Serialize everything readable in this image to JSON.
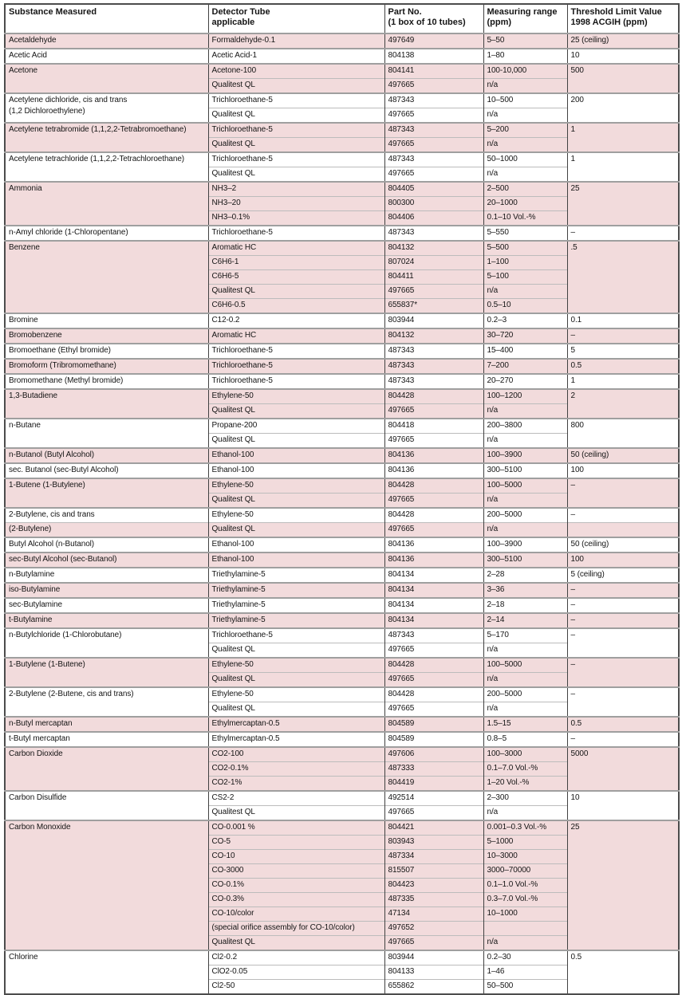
{
  "colors": {
    "row_pink": "#f2dbdc",
    "row_white": "#ffffff",
    "grid_dark": "#414141",
    "group_separator": "#9f9f9f",
    "subrow_separator": "#bcbcbc"
  },
  "header": {
    "columns": [
      "Substance Measured",
      "Detector Tube\napplicable",
      "Part No.\n(1 box of 10 tubes)",
      "Measuring range\n(ppm)",
      "Threshold Limit Value\n1998 ACGIH (ppm)"
    ]
  },
  "table": {
    "groups": [
      {
        "substance": "Acetaldehyde",
        "shade": "pink",
        "tlv": "25 (ceiling)",
        "rows": [
          {
            "tube": "Formaldehyde-0.1",
            "part": "497649",
            "range": "5–50"
          }
        ]
      },
      {
        "substance": "Acetic Acid",
        "shade": "white",
        "tlv": "10",
        "rows": [
          {
            "tube": "Acetic Acid-1",
            "part": "804138",
            "range": "1–80"
          }
        ]
      },
      {
        "substance": "Acetone",
        "shade": "pink",
        "tlv": "500",
        "rows": [
          {
            "tube": "Acetone-100",
            "part": "804141",
            "range": "100-10,000"
          },
          {
            "tube": "Qualitest QL",
            "part": "497665",
            "range": "n/a"
          }
        ]
      },
      {
        "substance": "Acetylene dichloride, cis and trans\n(1,2 Dichloroethylene)",
        "shade": "white",
        "tlv": "200",
        "rows": [
          {
            "tube": "Trichloroethane-5",
            "part": "487343",
            "range": "10–500"
          },
          {
            "tube": "Qualitest QL",
            "part": "497665",
            "range": "n/a"
          }
        ]
      },
      {
        "substance": "Acetylene tetrabromide (1,1,2,2-Tetrabromoethane)",
        "shade": "pink",
        "tlv": "1",
        "rows": [
          {
            "tube": "Trichloroethane-5",
            "part": "487343",
            "range": "5–200"
          },
          {
            "tube": "Qualitest QL",
            "part": "497665",
            "range": "n/a"
          }
        ]
      },
      {
        "substance": "Acetylene tetrachloride (1,1,2,2-Tetrachloroethane)",
        "shade": "white",
        "tlv": "1",
        "rows": [
          {
            "tube": "Trichloroethane-5",
            "part": "487343",
            "range": "50–1000"
          },
          {
            "tube": "Qualitest QL",
            "part": "497665",
            "range": "n/a"
          }
        ]
      },
      {
        "substance": "Ammonia",
        "shade": "pink",
        "tlv": "25",
        "rows": [
          {
            "tube": "NH3–2",
            "part": "804405",
            "range": "2–500"
          },
          {
            "tube": "NH3–20",
            "part": "800300",
            "range": "20–1000"
          },
          {
            "tube": "NH3–0.1%",
            "part": "804406",
            "range": "0.1–10 Vol.-%"
          }
        ]
      },
      {
        "substance": "n-Amyl chloride (1-Chloropentane)",
        "shade": "white",
        "tlv": "–",
        "rows": [
          {
            "tube": "Trichloroethane-5",
            "part": "487343",
            "range": "5–550"
          }
        ]
      },
      {
        "substance": "Benzene",
        "shade": "pink",
        "tlv": ".5",
        "rows": [
          {
            "tube": "Aromatic HC",
            "part": "804132",
            "range": "5–500"
          },
          {
            "tube": "C6H6-1",
            "part": "807024",
            "range": "1–100"
          },
          {
            "tube": "C6H6-5",
            "part": "804411",
            "range": "5–100"
          },
          {
            "tube": "Qualitest QL",
            "part": "497665",
            "range": "n/a"
          },
          {
            "tube": "C6H6-0.5",
            "part": "655837*",
            "range": "0.5–10"
          }
        ]
      },
      {
        "substance": "Bromine",
        "shade": "white",
        "tlv": "0.1",
        "rows": [
          {
            "tube": "C12-0.2",
            "part": "803944",
            "range": "0.2–3"
          }
        ]
      },
      {
        "substance": "Bromobenzene",
        "shade": "pink",
        "tlv": "–",
        "rows": [
          {
            "tube": "Aromatic HC",
            "part": "804132",
            "range": "30–720"
          }
        ]
      },
      {
        "substance": "Bromoethane (Ethyl bromide)",
        "shade": "white",
        "tlv": "5",
        "rows": [
          {
            "tube": "Trichloroethane-5",
            "part": "487343",
            "range": "15–400"
          }
        ]
      },
      {
        "substance": "Bromoform (Tribromomethane)",
        "shade": "pink",
        "tlv": "0.5",
        "rows": [
          {
            "tube": "Trichloroethane-5",
            "part": "487343",
            "range": "7–200"
          }
        ]
      },
      {
        "substance": "Bromomethane (Methyl bromide)",
        "shade": "white",
        "tlv": "1",
        "rows": [
          {
            "tube": "Trichloroethane-5",
            "part": "487343",
            "range": "20–270"
          }
        ]
      },
      {
        "substance": "1,3-Butadiene",
        "shade": "pink",
        "tlv": "2",
        "rows": [
          {
            "tube": "Ethylene-50",
            "part": "804428",
            "range": "100–1200"
          },
          {
            "tube": "Qualitest QL",
            "part": "497665",
            "range": "n/a"
          }
        ]
      },
      {
        "substance": "n-Butane",
        "shade": "white",
        "tlv": "800",
        "rows": [
          {
            "tube": "Propane-200",
            "part": "804418",
            "range": "200–3800"
          },
          {
            "tube": "Qualitest QL",
            "part": "497665",
            "range": "n/a"
          }
        ]
      },
      {
        "substance": "n-Butanol (Butyl Alcohol)",
        "shade": "pink",
        "tlv": "50 (ceiling)",
        "rows": [
          {
            "tube": "Ethanol-100",
            "part": "804136",
            "range": "100–3900"
          }
        ]
      },
      {
        "substance": "sec. Butanol (sec-Butyl Alcohol)",
        "shade": "white",
        "tlv": "100",
        "rows": [
          {
            "tube": "Ethanol-100",
            "part": "804136",
            "range": "300–5100"
          }
        ]
      },
      {
        "substance": "1-Butene (1-Butylene)",
        "shade": "pink",
        "tlv": "–",
        "rows": [
          {
            "tube": "Ethylene-50",
            "part": "804428",
            "range": "100–5000"
          },
          {
            "tube": "Qualitest QL",
            "part": "497665",
            "range": "n/a"
          }
        ]
      },
      {
        "substance": "2-Butylene, cis and trans",
        "shade": "white",
        "tlv": "–",
        "rows": [
          {
            "tube": "Ethylene-50",
            "part": "804428",
            "range": "200–5000"
          }
        ]
      },
      {
        "substance": "(2-Butylene)",
        "shade": "pink",
        "tlv": "",
        "light_start": true,
        "rows": [
          {
            "tube": "Qualitest QL",
            "part": "497665",
            "range": "n/a"
          }
        ]
      },
      {
        "substance": "Butyl Alcohol (n-Butanol)",
        "shade": "white",
        "tlv": "50 (ceiling)",
        "rows": [
          {
            "tube": "Ethanol-100",
            "part": "804136",
            "range": "100–3900"
          }
        ]
      },
      {
        "substance": "sec-Butyl Alcohol (sec-Butanol)",
        "shade": "pink",
        "tlv": "100",
        "rows": [
          {
            "tube": "Ethanol-100",
            "part": "804136",
            "range": "300–5100"
          }
        ]
      },
      {
        "substance": "n-Butylamine",
        "shade": "white",
        "tlv": "5 (ceiling)",
        "rows": [
          {
            "tube": "Triethylamine-5",
            "part": "804134",
            "range": "2–28"
          }
        ]
      },
      {
        "substance": "iso-Butylamine",
        "shade": "pink",
        "tlv": "–",
        "rows": [
          {
            "tube": "Triethylamine-5",
            "part": "804134",
            "range": "3–36"
          }
        ]
      },
      {
        "substance": "sec-Butylamine",
        "shade": "white",
        "tlv": "–",
        "rows": [
          {
            "tube": "Triethylamine-5",
            "part": "804134",
            "range": "2–18"
          }
        ]
      },
      {
        "substance": "t-Butylamine",
        "shade": "pink",
        "tlv": "–",
        "rows": [
          {
            "tube": "Triethylamine-5",
            "part": "804134",
            "range": "2–14"
          }
        ]
      },
      {
        "substance": "n-Butylchloride (1-Chlorobutane)",
        "shade": "white",
        "tlv": "–",
        "rows": [
          {
            "tube": "Trichloroethane-5",
            "part": "487343",
            "range": "5–170"
          },
          {
            "tube": "Qualitest QL",
            "part": "497665",
            "range": "n/a"
          }
        ]
      },
      {
        "substance": "1-Butylene (1-Butene)",
        "shade": "pink",
        "tlv": "–",
        "rows": [
          {
            "tube": "Ethylene-50",
            "part": "804428",
            "range": "100–5000"
          },
          {
            "tube": "Qualitest QL",
            "part": "497665",
            "range": "n/a"
          }
        ]
      },
      {
        "substance": "2-Butylene (2-Butene, cis and trans)",
        "shade": "white",
        "tlv": "–",
        "rows": [
          {
            "tube": "Ethylene-50",
            "part": "804428",
            "range": "200–5000"
          },
          {
            "tube": "Qualitest QL",
            "part": "497665",
            "range": "n/a"
          }
        ]
      },
      {
        "substance": "n-Butyl mercaptan",
        "shade": "pink",
        "tlv": "0.5",
        "rows": [
          {
            "tube": "Ethylmercaptan-0.5",
            "part": "804589",
            "range": "1.5–15"
          }
        ]
      },
      {
        "substance": "t-Butyl mercaptan",
        "shade": "white",
        "tlv": "–",
        "rows": [
          {
            "tube": "Ethylmercaptan-0.5",
            "part": "804589",
            "range": "0.8–5"
          }
        ]
      },
      {
        "substance": "Carbon Dioxide",
        "shade": "pink",
        "tlv": "5000",
        "rows": [
          {
            "tube": "CO2-100",
            "part": "497606",
            "range": "100–3000"
          },
          {
            "tube": "CO2-0.1%",
            "part": "487333",
            "range": "0.1–7.0 Vol.-%"
          },
          {
            "tube": "CO2-1%",
            "part": "804419",
            "range": "1–20 Vol.-%"
          }
        ]
      },
      {
        "substance": "Carbon Disulfide",
        "shade": "white",
        "tlv": "10",
        "rows": [
          {
            "tube": "CS2-2",
            "part": "492514",
            "range": "2–300"
          },
          {
            "tube": "Qualitest QL",
            "part": "497665",
            "range": "n/a"
          }
        ]
      },
      {
        "substance": "Carbon Monoxide",
        "shade": "pink",
        "tlv": "25",
        "rows": [
          {
            "tube": "CO-0.001 %",
            "part": "804421",
            "range": "0.001–0.3 Vol.-%"
          },
          {
            "tube": "CO-5",
            "part": "803943",
            "range": "5–1000"
          },
          {
            "tube": "CO-10",
            "part": "487334",
            "range": "10–3000"
          },
          {
            "tube": "CO-3000",
            "part": "815507",
            "range": "3000–70000"
          },
          {
            "tube": "CO-0.1%",
            "part": "804423",
            "range": "0.1–1.0 Vol.-%"
          },
          {
            "tube": "CO-0.3%",
            "part": "487335",
            "range": "0.3–7.0 Vol.-%"
          },
          {
            "tube": "CO-10/color",
            "part": "47134",
            "range": "10–1000"
          },
          {
            "tube": "(special orifice assembly for CO-10/color)",
            "part": "497652",
            "range": ""
          },
          {
            "tube": "Qualitest QL",
            "part": "497665",
            "range": "n/a"
          }
        ]
      },
      {
        "substance": "Chlorine",
        "shade": "white",
        "tlv": "0.5",
        "rows": [
          {
            "tube": "Cl2-0.2",
            "part": "803944",
            "range": "0.2–30"
          },
          {
            "tube": "ClO2-0.05",
            "part": "804133",
            "range": "1–46"
          },
          {
            "tube": "Cl2-50",
            "part": "655862",
            "range": "50–500"
          }
        ]
      }
    ]
  }
}
